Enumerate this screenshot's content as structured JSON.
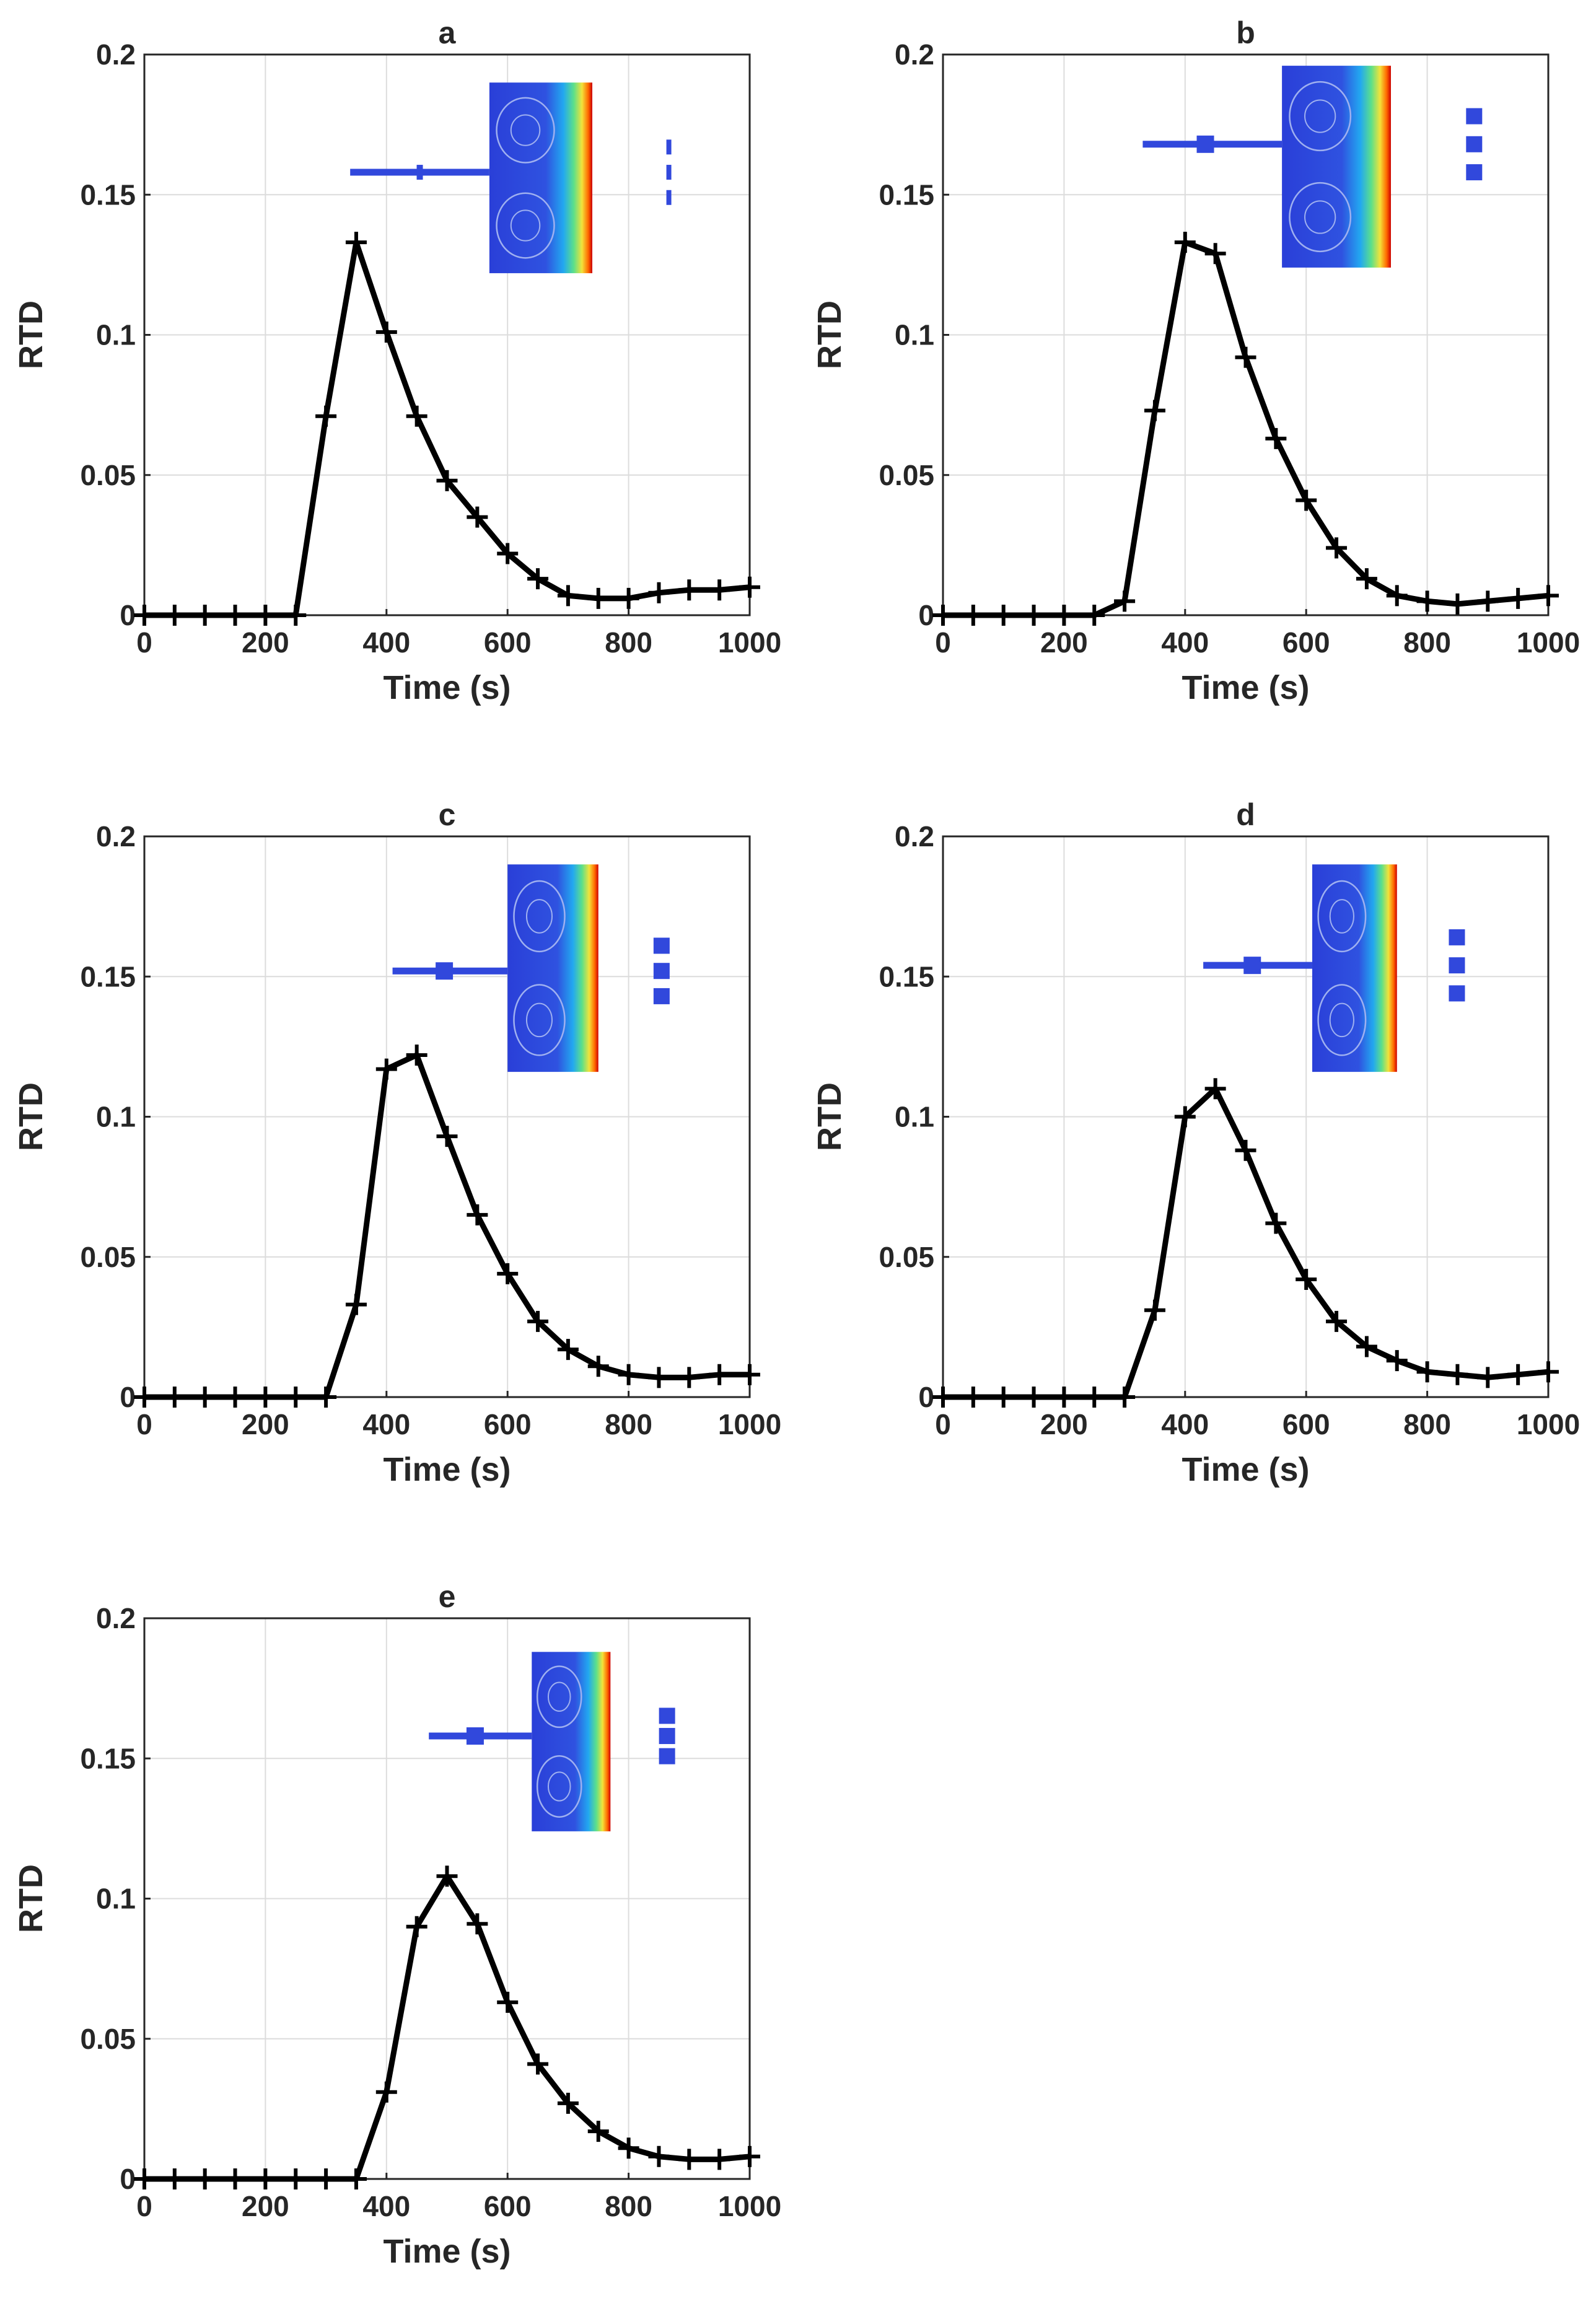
{
  "chart_data": [
    {
      "type": "line",
      "title": "a",
      "xlabel": "Time (s)",
      "ylabel": "RTD",
      "xlim": [
        0,
        1000
      ],
      "ylim": [
        0,
        0.2
      ],
      "grid": true,
      "x_ticks": [
        "0",
        "200",
        "400",
        "600",
        "800",
        "1000"
      ],
      "y_ticks": [
        "0",
        "0.05",
        "0.1",
        "0.15",
        "0.2"
      ],
      "x": [
        0,
        50,
        100,
        150,
        200,
        250,
        300,
        350,
        400,
        450,
        500,
        550,
        600,
        650,
        700,
        750,
        800,
        850,
        900,
        950,
        1000
      ],
      "values": [
        0,
        0,
        0,
        0,
        0,
        0,
        0.071,
        0.133,
        0.101,
        0.071,
        0.048,
        0.035,
        0.022,
        0.013,
        0.007,
        0.006,
        0.006,
        0.008,
        0.009,
        0.009,
        0.01
      ],
      "inset": "flow-field simulation image: chamber with single inlet and three outlets",
      "inset_variant": "a"
    },
    {
      "type": "line",
      "title": "b",
      "xlabel": "Time (s)",
      "ylabel": "RTD",
      "xlim": [
        0,
        1000
      ],
      "ylim": [
        0,
        0.2
      ],
      "grid": true,
      "x_ticks": [
        "0",
        "200",
        "400",
        "600",
        "800",
        "1000"
      ],
      "y_ticks": [
        "0",
        "0.05",
        "0.1",
        "0.15",
        "0.2"
      ],
      "x": [
        0,
        50,
        100,
        150,
        200,
        250,
        300,
        350,
        400,
        450,
        500,
        550,
        600,
        650,
        700,
        750,
        800,
        850,
        900,
        950,
        1000
      ],
      "values": [
        0,
        0,
        0,
        0,
        0,
        0,
        0.005,
        0.073,
        0.133,
        0.129,
        0.092,
        0.063,
        0.041,
        0.024,
        0.013,
        0.007,
        0.005,
        0.004,
        0.005,
        0.006,
        0.007
      ],
      "inset": "flow-field simulation image: chamber with single inlet and three outlets",
      "inset_variant": "b"
    },
    {
      "type": "line",
      "title": "c",
      "xlabel": "Time (s)",
      "ylabel": "RTD",
      "xlim": [
        0,
        1000
      ],
      "ylim": [
        0,
        0.2
      ],
      "grid": true,
      "x_ticks": [
        "0",
        "200",
        "400",
        "600",
        "800",
        "1000"
      ],
      "y_ticks": [
        "0",
        "0.05",
        "0.1",
        "0.15",
        "0.2"
      ],
      "x": [
        0,
        50,
        100,
        150,
        200,
        250,
        300,
        350,
        400,
        450,
        500,
        550,
        600,
        650,
        700,
        750,
        800,
        850,
        900,
        950,
        1000
      ],
      "values": [
        0,
        0,
        0,
        0,
        0,
        0,
        0,
        0.033,
        0.117,
        0.122,
        0.093,
        0.065,
        0.044,
        0.027,
        0.017,
        0.011,
        0.008,
        0.007,
        0.007,
        0.008,
        0.008
      ],
      "inset": "flow-field simulation image: chamber with single inlet and three outlets",
      "inset_variant": "c"
    },
    {
      "type": "line",
      "title": "d",
      "xlabel": "Time (s)",
      "ylabel": "RTD",
      "xlim": [
        0,
        1000
      ],
      "ylim": [
        0,
        0.2
      ],
      "grid": true,
      "x_ticks": [
        "0",
        "200",
        "400",
        "600",
        "800",
        "1000"
      ],
      "y_ticks": [
        "0",
        "0.05",
        "0.1",
        "0.15",
        "0.2"
      ],
      "x": [
        0,
        50,
        100,
        150,
        200,
        250,
        300,
        350,
        400,
        450,
        500,
        550,
        600,
        650,
        700,
        750,
        800,
        850,
        900,
        950,
        1000
      ],
      "values": [
        0,
        0,
        0,
        0,
        0,
        0,
        0,
        0.031,
        0.1,
        0.11,
        0.088,
        0.062,
        0.042,
        0.027,
        0.018,
        0.013,
        0.009,
        0.008,
        0.007,
        0.008,
        0.009
      ],
      "inset": "flow-field simulation image: chamber with single inlet and three outlets",
      "inset_variant": "d"
    },
    {
      "type": "line",
      "title": "e",
      "xlabel": "Time (s)",
      "ylabel": "RTD",
      "xlim": [
        0,
        1000
      ],
      "ylim": [
        0,
        0.2
      ],
      "grid": true,
      "x_ticks": [
        "0",
        "200",
        "400",
        "600",
        "800",
        "1000"
      ],
      "y_ticks": [
        "0",
        "0.05",
        "0.1",
        "0.15",
        "0.2"
      ],
      "x": [
        0,
        50,
        100,
        150,
        200,
        250,
        300,
        350,
        400,
        450,
        500,
        550,
        600,
        650,
        700,
        750,
        800,
        850,
        900,
        950,
        1000
      ],
      "values": [
        0,
        0,
        0,
        0,
        0,
        0,
        0,
        0,
        0.031,
        0.09,
        0.108,
        0.091,
        0.063,
        0.041,
        0.027,
        0.017,
        0.011,
        0.008,
        0.007,
        0.007,
        0.008
      ],
      "inset": "flow-field simulation image: chamber with single inlet and three outlets",
      "inset_variant": "e"
    }
  ],
  "colors": {
    "series": "#000000",
    "axis": "#262626",
    "grid": "#dcdcdc",
    "inset_flow_low": "#2a3fd8",
    "inset_flow_high": "#cc0000"
  }
}
